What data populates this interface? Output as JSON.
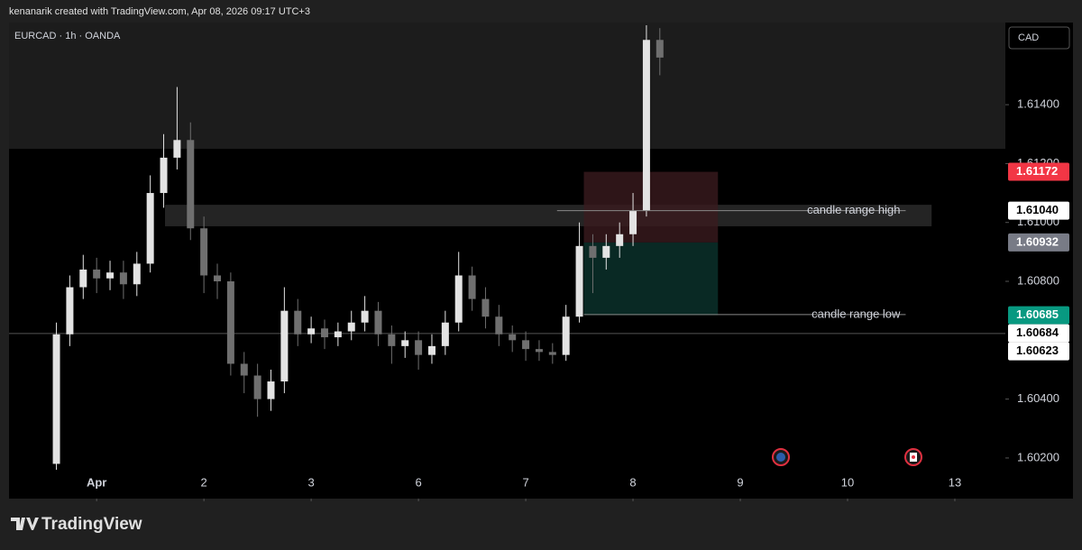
{
  "header": "kenanarik created with TradingView.com, Apr 08, 2026 09:17 UTC+3",
  "brand": "TradingView",
  "chart_data": {
    "type": "candlestick",
    "title": "EURCAD · 1h · OANDA",
    "currency": "CAD",
    "grid": false,
    "up_color": "#e3e3e3",
    "down_color": "#6f6f6f",
    "xlim": [
      -19.6,
      203.3
    ],
    "xticks": [
      {
        "value": 0,
        "label": "Apr"
      },
      {
        "value": 24,
        "label": "2"
      },
      {
        "value": 48,
        "label": "3"
      },
      {
        "value": 72,
        "label": "6"
      },
      {
        "value": 96,
        "label": "7"
      },
      {
        "value": 120,
        "label": "8"
      },
      {
        "value": 144,
        "label": "9"
      },
      {
        "value": 168,
        "label": "10"
      },
      {
        "value": 192,
        "label": "13"
      }
    ],
    "ylim": [
      1.60062,
      1.61679
    ],
    "yticks": [
      {
        "value": 1.602,
        "label": "1.60200"
      },
      {
        "value": 1.604,
        "label": "1.60400"
      },
      {
        "value": 1.608,
        "label": "1.60800"
      },
      {
        "value": 1.61,
        "label": "1.61000"
      },
      {
        "value": 1.612,
        "label": "1.61200"
      },
      {
        "value": 1.614,
        "label": "1.61400"
      }
    ],
    "x": [
      -9,
      -6,
      -3,
      0,
      3,
      6,
      9,
      12,
      15,
      18,
      21,
      24,
      27,
      30,
      33,
      36,
      39,
      42,
      45,
      48,
      51,
      54,
      57,
      60,
      63,
      66,
      69,
      72,
      75,
      78,
      81,
      84,
      87,
      90,
      93,
      96,
      99,
      102,
      105,
      108,
      111,
      114,
      117,
      120,
      123,
      126
    ],
    "open": [
      1.6018,
      1.6062,
      1.6078,
      1.6084,
      1.6081,
      1.6083,
      1.6079,
      1.6086,
      1.611,
      1.6122,
      1.6128,
      1.6098,
      1.6082,
      1.608,
      1.6052,
      1.6048,
      1.604,
      1.6046,
      1.607,
      1.6062,
      1.6064,
      1.6061,
      1.6063,
      1.6066,
      1.607,
      1.6062,
      1.6058,
      1.606,
      1.6055,
      1.6058,
      1.6066,
      1.6082,
      1.6074,
      1.6068,
      1.6062,
      1.606,
      1.6057,
      1.6056,
      1.6055,
      1.6068,
      1.6092,
      1.6088,
      1.6092,
      1.6096,
      1.6104,
      1.6162
    ],
    "high": [
      1.6066,
      1.6082,
      1.6089,
      1.6088,
      1.6087,
      1.6087,
      1.609,
      1.6116,
      1.613,
      1.6146,
      1.6134,
      1.6102,
      1.6086,
      1.6083,
      1.6056,
      1.6052,
      1.605,
      1.6078,
      1.6074,
      1.6068,
      1.6067,
      1.6066,
      1.607,
      1.6075,
      1.6073,
      1.6065,
      1.6063,
      1.6063,
      1.6062,
      1.607,
      1.609,
      1.6085,
      1.6078,
      1.6072,
      1.6065,
      1.6063,
      1.606,
      1.6059,
      1.6072,
      1.61,
      1.6096,
      1.6096,
      1.61,
      1.611,
      1.6167,
      1.6166
    ],
    "low": [
      1.6016,
      1.6058,
      1.6074,
      1.6076,
      1.6077,
      1.6074,
      1.6075,
      1.6083,
      1.6105,
      1.6118,
      1.6094,
      1.6076,
      1.6074,
      1.6048,
      1.6042,
      1.6034,
      1.6036,
      1.6042,
      1.6058,
      1.6059,
      1.6057,
      1.6058,
      1.606,
      1.6063,
      1.6058,
      1.6052,
      1.6054,
      1.605,
      1.6052,
      1.6055,
      1.6063,
      1.607,
      1.6064,
      1.6058,
      1.6056,
      1.6053,
      1.6053,
      1.6052,
      1.6053,
      1.6066,
      1.6076,
      1.6084,
      1.6088,
      1.6092,
      1.6102,
      1.615
    ],
    "close": [
      1.6062,
      1.6078,
      1.6084,
      1.6081,
      1.6083,
      1.6079,
      1.6086,
      1.611,
      1.6122,
      1.6128,
      1.6098,
      1.6082,
      1.608,
      1.6052,
      1.6048,
      1.604,
      1.6046,
      1.607,
      1.6062,
      1.6064,
      1.6061,
      1.6063,
      1.6066,
      1.607,
      1.6062,
      1.6058,
      1.606,
      1.6055,
      1.6058,
      1.6066,
      1.6082,
      1.6074,
      1.6068,
      1.6062,
      1.606,
      1.6057,
      1.6056,
      1.6055,
      1.6068,
      1.6092,
      1.6088,
      1.6092,
      1.6096,
      1.6104,
      1.6162,
      1.6156
    ],
    "shaded_above": 1.6125,
    "range_band": {
      "x": [
        15.3,
        186.8
      ],
      "y": [
        1.60987,
        1.6106
      ]
    },
    "position": {
      "x": [
        109,
        139
      ],
      "stop": [
        1.60932,
        1.61172
      ],
      "target": [
        1.60685,
        1.60932
      ]
    },
    "hline": 1.60623,
    "annotations": [
      {
        "text": "candle range high",
        "value": 1.6104,
        "x": [
          103,
          181
        ]
      },
      {
        "text": "candle range low",
        "value": 1.60687,
        "x": [
          109,
          181
        ]
      }
    ],
    "price_labels": [
      {
        "value": 1.61172,
        "label": "1.61172",
        "color": "#f23645"
      },
      {
        "value": 1.6104,
        "label": "1.61040",
        "color": "#ffffff"
      },
      {
        "value": 1.60932,
        "label": "1.60932",
        "color": "#787b86"
      },
      {
        "value": 1.60685,
        "label": "1.60685",
        "color": "#089981"
      },
      {
        "value": 1.60684,
        "label": "1.60684",
        "color": "#ffffff"
      },
      {
        "value": 1.60623,
        "label": "1.60623",
        "color": "#ffffff"
      }
    ]
  }
}
